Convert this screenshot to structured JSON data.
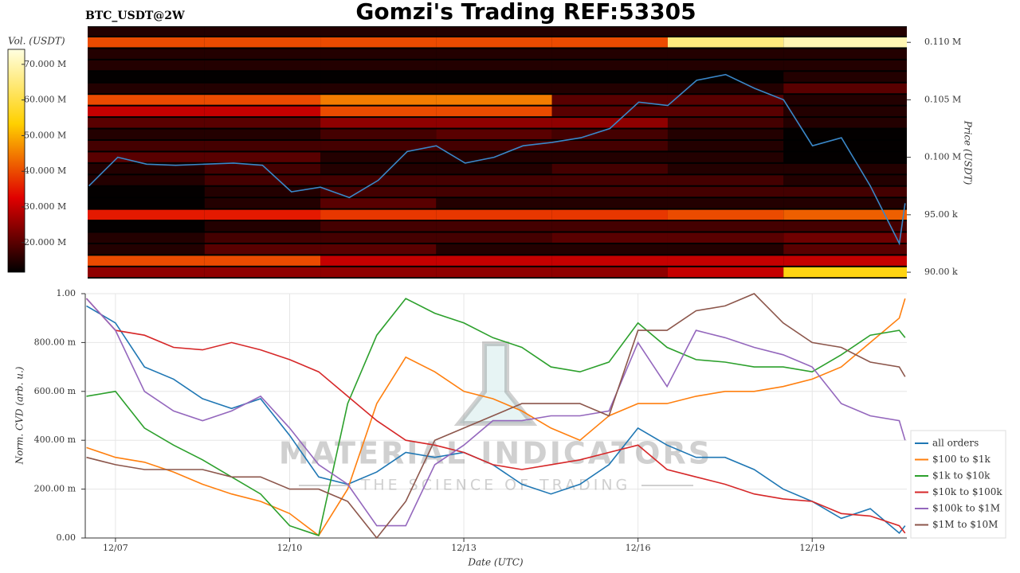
{
  "title": "Gomzi's Trading REF:53305",
  "watermark": {
    "brand": "MATERIAL INDICATORS",
    "tagline": "THE SCIENCE OF TRADING"
  },
  "chart_data": [
    {
      "type": "heatmap",
      "title": "BTC_USDT@2W",
      "ylabel": "Price (USDT)",
      "xlim": [
        6.48,
        20.63
      ],
      "ylim": [
        89450,
        111400
      ],
      "yticks": [
        {
          "value": 90000,
          "label": "90.00 k"
        },
        {
          "value": 95000,
          "label": "95.00 k"
        },
        {
          "value": 100000,
          "label": "0.100 M"
        },
        {
          "value": 105000,
          "label": "0.105 M"
        },
        {
          "value": 110000,
          "label": "0.110 M"
        }
      ],
      "x_bins": [
        6.48,
        8.5,
        10.5,
        12.5,
        14.5,
        16.5,
        18.5,
        20.63
      ],
      "y_bins": [
        89500,
        90500,
        91500,
        92500,
        93500,
        94500,
        95500,
        96500,
        97500,
        98500,
        99500,
        100500,
        101500,
        102500,
        103500,
        104500,
        105500,
        106500,
        107500,
        108500,
        109500,
        110500,
        111500
      ],
      "values": [
        [
          25,
          25,
          25,
          25,
          25,
          30,
          55
        ],
        [
          40,
          40,
          30,
          30,
          30,
          30,
          30
        ],
        [
          15,
          20,
          20,
          15,
          15,
          15,
          20
        ],
        [
          15,
          18,
          18,
          18,
          20,
          20,
          22
        ],
        [
          12,
          15,
          18,
          18,
          18,
          18,
          18
        ],
        [
          35,
          35,
          38,
          38,
          38,
          40,
          42
        ],
        [
          12,
          15,
          20,
          15,
          15,
          15,
          15
        ],
        [
          12,
          15,
          18,
          18,
          18,
          18,
          18
        ],
        [
          15,
          18,
          18,
          18,
          18,
          18,
          15
        ],
        [
          15,
          18,
          15,
          15,
          18,
          15,
          15
        ],
        [
          20,
          20,
          15,
          15,
          15,
          15,
          12
        ],
        [
          18,
          18,
          18,
          18,
          18,
          15,
          12
        ],
        [
          15,
          15,
          18,
          20,
          18,
          15,
          12
        ],
        [
          20,
          20,
          25,
          25,
          25,
          18,
          15
        ],
        [
          30,
          30,
          40,
          40,
          20,
          20,
          15
        ],
        [
          40,
          40,
          45,
          45,
          20,
          20,
          15
        ],
        [
          15,
          15,
          15,
          15,
          15,
          15,
          20
        ],
        [
          12,
          12,
          12,
          12,
          12,
          12,
          15
        ],
        [
          15,
          15,
          15,
          15,
          15,
          15,
          15
        ],
        [
          15,
          15,
          15,
          15,
          15,
          15,
          15
        ],
        [
          40,
          40,
          40,
          40,
          40,
          65,
          70
        ],
        [
          15,
          15,
          15,
          15,
          15,
          15,
          15
        ]
      ],
      "colorscale": [
        "#000000",
        "#e00000",
        "#ffd000",
        "#ffffe0"
      ],
      "colorbar": {
        "label": "Vol. (USDT)",
        "lim": [
          11.7,
          74.2
        ],
        "ticks": [
          {
            "value": 20,
            "label": "20.000 M"
          },
          {
            "value": 30,
            "label": "30.000 M"
          },
          {
            "value": 40,
            "label": "40.000 M"
          },
          {
            "value": 50,
            "label": "50.000 M"
          },
          {
            "value": 60,
            "label": "60.000 M"
          },
          {
            "value": 70,
            "label": "70.000 M"
          }
        ]
      },
      "line": {
        "color": "#3a87c8",
        "x": [
          6.5,
          7,
          7.5,
          8,
          8.5,
          9,
          9.5,
          10,
          10.5,
          11,
          11.5,
          12,
          12.5,
          13,
          13.5,
          14,
          14.5,
          15,
          15.5,
          16,
          16.5,
          17,
          17.5,
          18,
          18.5,
          19,
          19.5,
          20,
          20.5,
          20.6
        ],
        "values": [
          97500,
          100000,
          99400,
          99300,
          99400,
          99500,
          99300,
          97000,
          97400,
          96500,
          98000,
          100500,
          101000,
          99500,
          100000,
          101000,
          101300,
          101700,
          102500,
          104800,
          104500,
          106700,
          107200,
          106000,
          105000,
          101000,
          101700,
          97500,
          92500,
          96000
        ]
      }
    },
    {
      "type": "line",
      "xlabel": "Date (UTC)",
      "ylabel": "Norm. CVD (arb. u.)",
      "grid": true,
      "legend": "lower right",
      "xlim": [
        6.48,
        20.63
      ],
      "ylim": [
        0,
        1
      ],
      "xticks": [
        {
          "value": 7,
          "label": "12/07"
        },
        {
          "value": 10,
          "label": "12/10"
        },
        {
          "value": 13,
          "label": "12/13"
        },
        {
          "value": 16,
          "label": "12/16"
        },
        {
          "value": 19,
          "label": "12/19"
        }
      ],
      "yticks": [
        {
          "value": 0,
          "label": "0.00"
        },
        {
          "value": 0.2,
          "label": "200.00 m"
        },
        {
          "value": 0.4,
          "label": "400.00 m"
        },
        {
          "value": 0.6,
          "label": "600.00 m"
        },
        {
          "value": 0.8,
          "label": "800.00 m"
        },
        {
          "value": 1,
          "label": "1.00"
        }
      ],
      "x": [
        6.5,
        7,
        7.5,
        8,
        8.5,
        9,
        9.5,
        10,
        10.5,
        11,
        11.5,
        12,
        12.5,
        13,
        13.5,
        14,
        14.5,
        15,
        15.5,
        16,
        16.5,
        17,
        17.5,
        18,
        18.5,
        19,
        19.5,
        20,
        20.5,
        20.6
      ],
      "series": [
        {
          "name": "all orders",
          "color": "#1f77b4",
          "values": [
            0.95,
            0.88,
            0.7,
            0.65,
            0.57,
            0.53,
            0.57,
            0.42,
            0.25,
            0.22,
            0.27,
            0.35,
            0.33,
            0.35,
            0.3,
            0.22,
            0.18,
            0.22,
            0.3,
            0.45,
            0.38,
            0.33,
            0.33,
            0.28,
            0.2,
            0.15,
            0.08,
            0.12,
            0.02,
            0.05
          ]
        },
        {
          "name": "$100 to $1k",
          "color": "#ff7f0e",
          "values": [
            0.37,
            0.33,
            0.31,
            0.27,
            0.22,
            0.18,
            0.15,
            0.1,
            0.01,
            0.2,
            0.55,
            0.74,
            0.68,
            0.6,
            0.57,
            0.52,
            0.45,
            0.4,
            0.5,
            0.55,
            0.55,
            0.58,
            0.6,
            0.6,
            0.62,
            0.65,
            0.7,
            0.8,
            0.9,
            0.98
          ]
        },
        {
          "name": "$1k to $10k",
          "color": "#2ca02c",
          "values": [
            0.58,
            0.6,
            0.45,
            0.38,
            0.32,
            0.25,
            0.18,
            0.05,
            0.01,
            0.55,
            0.83,
            0.98,
            0.92,
            0.88,
            0.82,
            0.78,
            0.7,
            0.68,
            0.72,
            0.88,
            0.78,
            0.73,
            0.72,
            0.7,
            0.7,
            0.68,
            0.75,
            0.83,
            0.85,
            0.82
          ]
        },
        {
          "name": "$10k to $100k",
          "color": "#d62728",
          "values": [
            0.98,
            0.85,
            0.83,
            0.78,
            0.77,
            0.8,
            0.77,
            0.73,
            0.68,
            0.58,
            0.48,
            0.4,
            0.38,
            0.35,
            0.3,
            0.28,
            0.3,
            0.32,
            0.35,
            0.38,
            0.28,
            0.25,
            0.22,
            0.18,
            0.16,
            0.15,
            0.1,
            0.09,
            0.05,
            0.02
          ]
        },
        {
          "name": "$100k to $1M",
          "color": "#9467bd",
          "values": [
            0.98,
            0.85,
            0.6,
            0.52,
            0.48,
            0.52,
            0.58,
            0.45,
            0.3,
            0.22,
            0.05,
            0.05,
            0.3,
            0.38,
            0.48,
            0.48,
            0.5,
            0.5,
            0.52,
            0.8,
            0.62,
            0.85,
            0.82,
            0.78,
            0.75,
            0.7,
            0.55,
            0.5,
            0.48,
            0.4
          ]
        },
        {
          "name": "$1M to $10M",
          "color": "#8c564b",
          "values": [
            0.33,
            0.3,
            0.28,
            0.28,
            0.28,
            0.25,
            0.25,
            0.2,
            0.2,
            0.15,
            0.0,
            0.15,
            0.4,
            0.45,
            0.5,
            0.55,
            0.55,
            0.55,
            0.5,
            0.85,
            0.85,
            0.93,
            0.95,
            1.0,
            0.88,
            0.8,
            0.78,
            0.72,
            0.7,
            0.66
          ]
        }
      ]
    }
  ]
}
